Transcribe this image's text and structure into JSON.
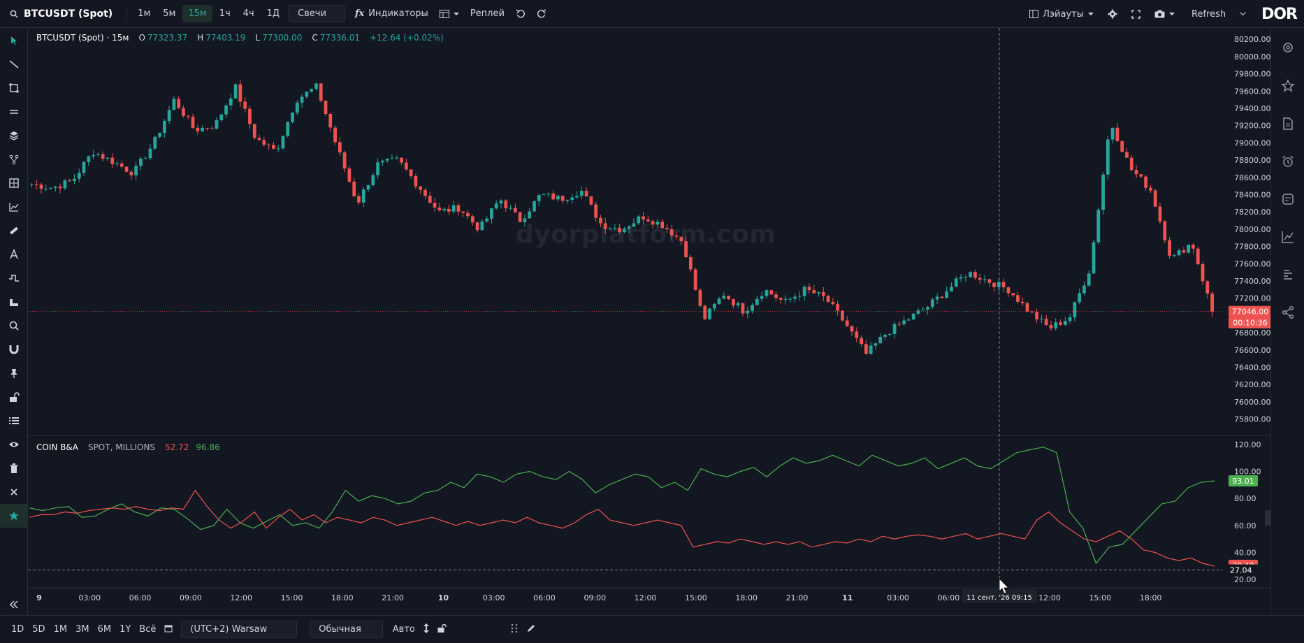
{
  "toolbar": {
    "symbol": "BTCUSDT (Spot)",
    "timeframes": [
      "1м",
      "5м",
      "15м",
      "1ч",
      "4ч",
      "1Д"
    ],
    "active_timeframe": "15м",
    "chart_type": "Свечи",
    "indicators_label": "Индикаторы",
    "replay_label": "Реплей",
    "layouts_label": "Лэйауты",
    "refresh_label": "Refresh",
    "logo": "DOR"
  },
  "legend": {
    "title": "BTCUSDT (Spot) · 15м",
    "open_key": "O",
    "open": "77323.37",
    "high_key": "H",
    "high": "77403.19",
    "low_key": "L",
    "low": "77300.00",
    "close_key": "C",
    "close": "77336.01",
    "change": "+12.64 (+0.02%)"
  },
  "indicator": {
    "name": "COIN B&A",
    "params": "SPOT, MILLIONS",
    "value_red": "52.72",
    "value_green": "96.86"
  },
  "watermark": "dyorplatform.com",
  "bottom": {
    "ranges": [
      "1D",
      "5D",
      "1M",
      "3M",
      "6M",
      "1Y",
      "Всё"
    ],
    "timezone": "(UTC+2) Warsaw",
    "mode": "Обычная",
    "auto": "Авто"
  },
  "colors": {
    "background": "#131722",
    "up": "#26a69a",
    "down": "#ef5350",
    "grid": "#1e222d",
    "green_line": "#4caf50",
    "red_line": "#ef5350"
  },
  "chart_data": [
    {
      "type": "candlestick",
      "price_axis": [
        80200,
        80000,
        79800,
        79600,
        79400,
        79200,
        79000,
        78800,
        78600,
        78400,
        78200,
        78000,
        77800,
        77600,
        77400,
        77200,
        77000,
        76800,
        76600,
        76400,
        76200,
        76000,
        75800
      ],
      "ylim": [
        75700,
        80250
      ],
      "last_price_label": "77046.00",
      "countdown_label": "00:10:36",
      "time_labels": [
        "9",
        "03:00",
        "06:00",
        "09:00",
        "12:00",
        "15:00",
        "18:00",
        "21:00",
        "10",
        "03:00",
        "06:00",
        "09:00",
        "12:00",
        "15:00",
        "18:00",
        "21:00",
        "11",
        "03:00",
        "06:00",
        "12:00",
        "15:00",
        "18:00"
      ],
      "crosshair_time_label": "11 сент. '26  09:15",
      "close_path": [
        78520,
        78480,
        78560,
        78900,
        78780,
        78650,
        79000,
        79500,
        79150,
        79200,
        79650,
        79050,
        78900,
        79500,
        79650,
        78950,
        78300,
        78750,
        78800,
        78500,
        78200,
        78250,
        78000,
        78350,
        78100,
        78400,
        78350,
        78450,
        78050,
        78000,
        78150,
        78050,
        77850,
        76950,
        77250,
        77050,
        77300,
        77150,
        77300,
        77200,
        76900,
        76550,
        76800,
        76950,
        77100,
        77300,
        77500,
        77400,
        77300,
        77050,
        76850,
        76980,
        77550,
        79250,
        78700,
        78450,
        77650,
        77850,
        77046
      ],
      "candle_count": 250
    },
    {
      "type": "line",
      "name": "COIN B&A",
      "value_axis": [
        120,
        100,
        80,
        60,
        40,
        20
      ],
      "ylim": [
        17,
        123
      ],
      "green_label": "93.01",
      "red_label": "30.49",
      "dashed_level_label": "27.04",
      "series": [
        {
          "name": "green",
          "values": [
            73,
            71,
            73,
            74,
            66,
            67,
            72,
            76,
            70,
            67,
            73,
            72,
            65,
            57,
            60,
            72,
            62,
            58,
            63,
            68,
            60,
            62,
            58,
            70,
            86,
            78,
            82,
            80,
            76,
            78,
            84,
            86,
            92,
            88,
            98,
            96,
            92,
            98,
            100,
            96,
            94,
            100,
            94,
            84,
            90,
            94,
            98,
            96,
            88,
            92,
            86,
            102,
            98,
            96,
            100,
            103,
            96,
            104,
            110,
            106,
            108,
            112,
            108,
            104,
            112,
            108,
            104,
            106,
            110,
            102,
            106,
            110,
            104,
            102,
            108,
            114,
            116,
            118,
            114,
            70,
            58,
            32,
            44,
            46,
            56,
            66,
            76,
            78,
            88,
            92,
            93
          ]
        },
        {
          "name": "red",
          "values": [
            66,
            68,
            68,
            70,
            69,
            71,
            72,
            73,
            72,
            74,
            72,
            71,
            73,
            72,
            86,
            74,
            64,
            58,
            63,
            70,
            58,
            66,
            72,
            64,
            68,
            62,
            66,
            64,
            62,
            66,
            64,
            60,
            62,
            64,
            66,
            63,
            60,
            63,
            60,
            62,
            64,
            62,
            66,
            62,
            60,
            58,
            62,
            68,
            72,
            64,
            62,
            60,
            62,
            64,
            62,
            60,
            44,
            46,
            48,
            47,
            50,
            48,
            46,
            48,
            46,
            48,
            44,
            46,
            48,
            47,
            50,
            48,
            52,
            50,
            52,
            53,
            52,
            50,
            52,
            54,
            50,
            52,
            54,
            52,
            50,
            64,
            70,
            62,
            56,
            50,
            48,
            52,
            56,
            50,
            42,
            40,
            36,
            34,
            36,
            32,
            30
          ]
        }
      ]
    }
  ]
}
